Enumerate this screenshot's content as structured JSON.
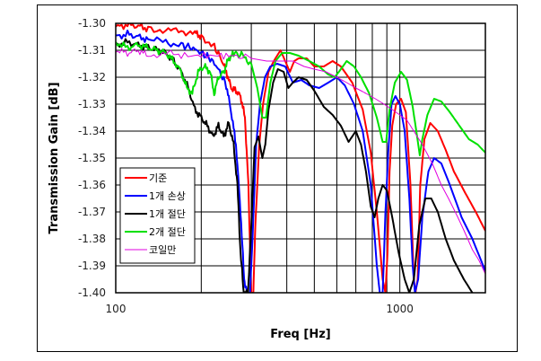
{
  "chart_data": {
    "type": "line",
    "title": "",
    "xlabel": "Freq [Hz]",
    "ylabel": "Transmission Gain [dB]",
    "xscale": "log",
    "xlim": [
      100,
      2000
    ],
    "ylim": [
      -1.4,
      -1.3
    ],
    "x_tick_labels": [
      "100",
      "1000"
    ],
    "y_tick_labels": [
      "-1.30",
      "-1.31",
      "-1.32",
      "-1.33",
      "-1.34",
      "-1.35",
      "-1.36",
      "-1.37",
      "-1.38",
      "-1.39",
      "-1.40"
    ],
    "grid": true,
    "legend_position": "lower-left inside",
    "series": [
      {
        "name": "기준",
        "color": "#ff0000",
        "width": 2,
        "points": [
          [
            100,
            -1.3015
          ],
          [
            110,
            -1.3005
          ],
          [
            120,
            -1.301
          ],
          [
            130,
            -1.302
          ],
          [
            150,
            -1.3025
          ],
          [
            170,
            -1.303
          ],
          [
            190,
            -1.3035
          ],
          [
            200,
            -1.305
          ],
          [
            220,
            -1.308
          ],
          [
            235,
            -1.313
          ],
          [
            245,
            -1.318
          ],
          [
            255,
            -1.324
          ],
          [
            265,
            -1.325
          ],
          [
            275,
            -1.327
          ],
          [
            285,
            -1.335
          ],
          [
            293,
            -1.36
          ],
          [
            300,
            -1.4
          ],
          [
            305,
            -1.4
          ],
          [
            310,
            -1.375
          ],
          [
            320,
            -1.345
          ],
          [
            330,
            -1.33
          ],
          [
            345,
            -1.318
          ],
          [
            360,
            -1.314
          ],
          [
            380,
            -1.31
          ],
          [
            395,
            -1.314
          ],
          [
            410,
            -1.318
          ],
          [
            425,
            -1.314
          ],
          [
            440,
            -1.313
          ],
          [
            470,
            -1.313
          ],
          [
            500,
            -1.316
          ],
          [
            540,
            -1.316
          ],
          [
            580,
            -1.314
          ],
          [
            620,
            -1.316
          ],
          [
            680,
            -1.322
          ],
          [
            740,
            -1.332
          ],
          [
            790,
            -1.348
          ],
          [
            830,
            -1.37
          ],
          [
            870,
            -1.395
          ],
          [
            890,
            -1.4
          ],
          [
            905,
            -1.385
          ],
          [
            920,
            -1.355
          ],
          [
            940,
            -1.338
          ],
          [
            970,
            -1.33
          ],
          [
            1010,
            -1.328
          ],
          [
            1050,
            -1.333
          ],
          [
            1090,
            -1.36
          ],
          [
            1120,
            -1.395
          ],
          [
            1135,
            -1.4
          ],
          [
            1155,
            -1.395
          ],
          [
            1180,
            -1.36
          ],
          [
            1220,
            -1.343
          ],
          [
            1280,
            -1.337
          ],
          [
            1360,
            -1.34
          ],
          [
            1450,
            -1.347
          ],
          [
            1550,
            -1.355
          ],
          [
            1700,
            -1.363
          ],
          [
            1850,
            -1.37
          ],
          [
            2000,
            -1.377
          ]
        ]
      },
      {
        "name": "1개 손상",
        "color": "#0000ff",
        "width": 2,
        "points": [
          [
            100,
            -1.305
          ],
          [
            110,
            -1.304
          ],
          [
            120,
            -1.305
          ],
          [
            130,
            -1.306
          ],
          [
            150,
            -1.307
          ],
          [
            170,
            -1.308
          ],
          [
            185,
            -1.309
          ],
          [
            200,
            -1.311
          ],
          [
            215,
            -1.313
          ],
          [
            230,
            -1.317
          ],
          [
            245,
            -1.323
          ],
          [
            255,
            -1.333
          ],
          [
            265,
            -1.345
          ],
          [
            275,
            -1.37
          ],
          [
            283,
            -1.395
          ],
          [
            290,
            -1.4
          ],
          [
            297,
            -1.4
          ],
          [
            303,
            -1.38
          ],
          [
            312,
            -1.345
          ],
          [
            322,
            -1.33
          ],
          [
            335,
            -1.32
          ],
          [
            350,
            -1.316
          ],
          [
            370,
            -1.315
          ],
          [
            395,
            -1.316
          ],
          [
            420,
            -1.322
          ],
          [
            450,
            -1.321
          ],
          [
            480,
            -1.323
          ],
          [
            520,
            -1.324
          ],
          [
            560,
            -1.322
          ],
          [
            600,
            -1.32
          ],
          [
            640,
            -1.323
          ],
          [
            690,
            -1.33
          ],
          [
            740,
            -1.34
          ],
          [
            790,
            -1.36
          ],
          [
            830,
            -1.39
          ],
          [
            850,
            -1.4
          ],
          [
            870,
            -1.4
          ],
          [
            890,
            -1.37
          ],
          [
            910,
            -1.348
          ],
          [
            935,
            -1.33
          ],
          [
            965,
            -1.327
          ],
          [
            1000,
            -1.33
          ],
          [
            1040,
            -1.34
          ],
          [
            1080,
            -1.365
          ],
          [
            1110,
            -1.39
          ],
          [
            1130,
            -1.4
          ],
          [
            1160,
            -1.395
          ],
          [
            1200,
            -1.372
          ],
          [
            1260,
            -1.355
          ],
          [
            1320,
            -1.35
          ],
          [
            1400,
            -1.352
          ],
          [
            1500,
            -1.36
          ],
          [
            1650,
            -1.372
          ],
          [
            1800,
            -1.38
          ],
          [
            2000,
            -1.392
          ]
        ]
      },
      {
        "name": "1개 절단",
        "color": "#000000",
        "width": 2,
        "points": [
          [
            100,
            -1.308
          ],
          [
            110,
            -1.307
          ],
          [
            120,
            -1.308
          ],
          [
            130,
            -1.309
          ],
          [
            140,
            -1.31
          ],
          [
            150,
            -1.311
          ],
          [
            160,
            -1.314
          ],
          [
            170,
            -1.318
          ],
          [
            180,
            -1.324
          ],
          [
            190,
            -1.332
          ],
          [
            200,
            -1.335
          ],
          [
            210,
            -1.338
          ],
          [
            220,
            -1.342
          ],
          [
            230,
            -1.338
          ],
          [
            240,
            -1.342
          ],
          [
            250,
            -1.337
          ],
          [
            260,
            -1.345
          ],
          [
            268,
            -1.36
          ],
          [
            275,
            -1.385
          ],
          [
            282,
            -1.4
          ],
          [
            292,
            -1.4
          ],
          [
            300,
            -1.375
          ],
          [
            308,
            -1.346
          ],
          [
            318,
            -1.342
          ],
          [
            328,
            -1.35
          ],
          [
            336,
            -1.345
          ],
          [
            345,
            -1.332
          ],
          [
            358,
            -1.322
          ],
          [
            372,
            -1.317
          ],
          [
            390,
            -1.318
          ],
          [
            405,
            -1.324
          ],
          [
            420,
            -1.322
          ],
          [
            440,
            -1.32
          ],
          [
            470,
            -1.321
          ],
          [
            500,
            -1.325
          ],
          [
            540,
            -1.331
          ],
          [
            580,
            -1.334
          ],
          [
            620,
            -1.338
          ],
          [
            660,
            -1.344
          ],
          [
            700,
            -1.34
          ],
          [
            730,
            -1.345
          ],
          [
            760,
            -1.355
          ],
          [
            790,
            -1.368
          ],
          [
            815,
            -1.372
          ],
          [
            840,
            -1.365
          ],
          [
            870,
            -1.36
          ],
          [
            900,
            -1.362
          ],
          [
            940,
            -1.372
          ],
          [
            990,
            -1.385
          ],
          [
            1040,
            -1.395
          ],
          [
            1080,
            -1.4
          ],
          [
            1120,
            -1.395
          ],
          [
            1170,
            -1.375
          ],
          [
            1230,
            -1.365
          ],
          [
            1290,
            -1.365
          ],
          [
            1360,
            -1.37
          ],
          [
            1450,
            -1.38
          ],
          [
            1550,
            -1.388
          ],
          [
            1680,
            -1.395
          ],
          [
            1800,
            -1.4
          ]
        ]
      },
      {
        "name": "2개 절단",
        "color": "#00e000",
        "width": 2,
        "points": [
          [
            100,
            -1.307
          ],
          [
            110,
            -1.309
          ],
          [
            120,
            -1.308
          ],
          [
            130,
            -1.309
          ],
          [
            140,
            -1.31
          ],
          [
            150,
            -1.311
          ],
          [
            160,
            -1.314
          ],
          [
            170,
            -1.318
          ],
          [
            178,
            -1.324
          ],
          [
            186,
            -1.326
          ],
          [
            195,
            -1.318
          ],
          [
            205,
            -1.316
          ],
          [
            215,
            -1.318
          ],
          [
            222,
            -1.326
          ],
          [
            230,
            -1.32
          ],
          [
            240,
            -1.318
          ],
          [
            250,
            -1.313
          ],
          [
            262,
            -1.311
          ],
          [
            280,
            -1.312
          ],
          [
            300,
            -1.315
          ],
          [
            315,
            -1.324
          ],
          [
            328,
            -1.335
          ],
          [
            338,
            -1.335
          ],
          [
            350,
            -1.322
          ],
          [
            365,
            -1.314
          ],
          [
            385,
            -1.311
          ],
          [
            410,
            -1.311
          ],
          [
            440,
            -1.312
          ],
          [
            480,
            -1.314
          ],
          [
            520,
            -1.316
          ],
          [
            560,
            -1.319
          ],
          [
            590,
            -1.32
          ],
          [
            620,
            -1.317
          ],
          [
            650,
            -1.314
          ],
          [
            690,
            -1.316
          ],
          [
            730,
            -1.32
          ],
          [
            780,
            -1.326
          ],
          [
            830,
            -1.335
          ],
          [
            870,
            -1.344
          ],
          [
            895,
            -1.344
          ],
          [
            920,
            -1.332
          ],
          [
            960,
            -1.322
          ],
          [
            1010,
            -1.318
          ],
          [
            1060,
            -1.321
          ],
          [
            1110,
            -1.331
          ],
          [
            1150,
            -1.342
          ],
          [
            1175,
            -1.349
          ],
          [
            1200,
            -1.343
          ],
          [
            1250,
            -1.334
          ],
          [
            1320,
            -1.328
          ],
          [
            1400,
            -1.329
          ],
          [
            1500,
            -1.333
          ],
          [
            1620,
            -1.338
          ],
          [
            1750,
            -1.343
          ],
          [
            1880,
            -1.345
          ],
          [
            2000,
            -1.348
          ]
        ]
      },
      {
        "name": "코일만",
        "color": "#e000e0",
        "width": 1,
        "points": [
          [
            100,
            -1.31
          ],
          [
            110,
            -1.311
          ],
          [
            120,
            -1.31
          ],
          [
            130,
            -1.312
          ],
          [
            150,
            -1.311
          ],
          [
            170,
            -1.312
          ],
          [
            200,
            -1.312
          ],
          [
            230,
            -1.312
          ],
          [
            260,
            -1.312
          ],
          [
            300,
            -1.313
          ],
          [
            340,
            -1.314
          ],
          [
            380,
            -1.314
          ],
          [
            420,
            -1.314
          ],
          [
            460,
            -1.316
          ],
          [
            500,
            -1.317
          ],
          [
            550,
            -1.318
          ],
          [
            600,
            -1.32
          ],
          [
            650,
            -1.322
          ],
          [
            700,
            -1.324
          ],
          [
            760,
            -1.326
          ],
          [
            820,
            -1.328
          ],
          [
            880,
            -1.33
          ],
          [
            940,
            -1.332
          ],
          [
            1000,
            -1.334
          ],
          [
            1060,
            -1.336
          ],
          [
            1120,
            -1.34
          ],
          [
            1200,
            -1.345
          ],
          [
            1300,
            -1.352
          ],
          [
            1400,
            -1.36
          ],
          [
            1500,
            -1.366
          ],
          [
            1600,
            -1.372
          ],
          [
            1700,
            -1.378
          ],
          [
            1800,
            -1.384
          ],
          [
            1900,
            -1.388
          ],
          [
            2000,
            -1.393
          ]
        ]
      }
    ]
  },
  "legend": {
    "items": [
      {
        "label": "기준",
        "color": "#ff0000"
      },
      {
        "label": "1개 손상",
        "color": "#0000ff"
      },
      {
        "label": "1개 절단",
        "color": "#000000"
      },
      {
        "label": "2개 절단",
        "color": "#00e000"
      },
      {
        "label": "코일만",
        "color": "#e000e0"
      }
    ]
  }
}
